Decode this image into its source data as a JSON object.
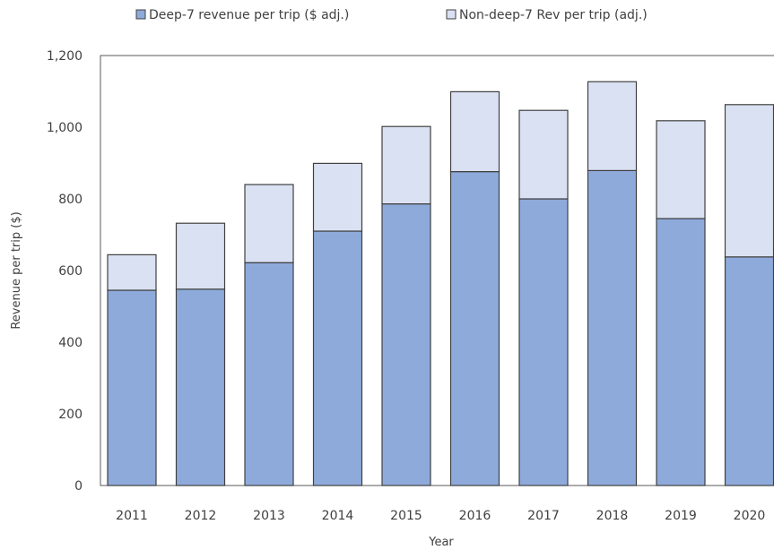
{
  "chart_data": {
    "type": "bar",
    "stacked": true,
    "title": "",
    "xlabel": "Year",
    "ylabel": "Revenue per trip ($)",
    "categories": [
      "2011",
      "2012",
      "2013",
      "2014",
      "2015",
      "2016",
      "2017",
      "2018",
      "2019",
      "2020"
    ],
    "series": [
      {
        "name": "Deep-7 revenue per trip ($ adj.)",
        "color": "#8eaadb",
        "values": [
          545,
          548,
          622,
          710,
          786,
          876,
          800,
          879,
          745,
          638
        ]
      },
      {
        "name": "Non-deep-7 Rev per trip (adj.)",
        "color": "#d9e1f2",
        "values": [
          99,
          184,
          218,
          189,
          216,
          223,
          247,
          248,
          273,
          425
        ]
      }
    ],
    "ylim": [
      0,
      1200
    ],
    "yticks": [
      "0",
      "200",
      "400",
      "600",
      "800",
      "1,000",
      "1,200"
    ],
    "ytick_values": [
      0,
      200,
      400,
      600,
      800,
      1000,
      1200
    ],
    "grid": false,
    "legend": "top"
  }
}
